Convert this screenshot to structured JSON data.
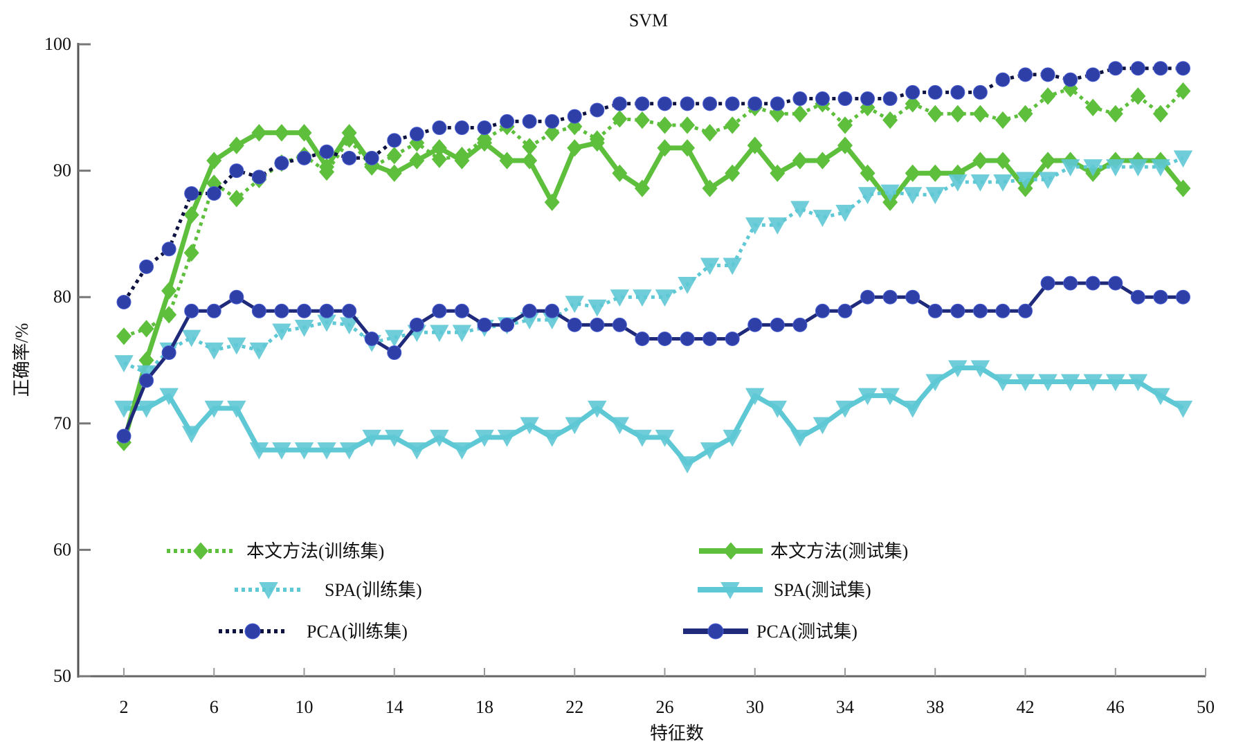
{
  "chart_data": {
    "type": "line",
    "title": "SVM",
    "xlabel": "特征数",
    "ylabel": "正确率/%",
    "xlim": [
      0,
      50
    ],
    "ylim": [
      50,
      100
    ],
    "xticks": [
      2,
      6,
      10,
      14,
      18,
      22,
      26,
      30,
      34,
      38,
      42,
      46,
      50
    ],
    "yticks": [
      50,
      60,
      70,
      80,
      90,
      100
    ],
    "grid": false,
    "legend_position": "lower-center",
    "x": [
      2,
      3,
      4,
      5,
      6,
      7,
      8,
      9,
      10,
      11,
      12,
      13,
      14,
      15,
      16,
      17,
      18,
      19,
      20,
      21,
      22,
      23,
      24,
      25,
      26,
      27,
      28,
      29,
      30,
      31,
      32,
      33,
      34,
      35,
      36,
      37,
      38,
      39,
      40,
      41,
      42,
      43,
      44,
      45,
      46,
      47,
      48,
      49
    ],
    "series": [
      {
        "name": "本文方法(训练集)",
        "color": "#5dbf3c",
        "style": "dotted",
        "marker": "diamond-circle",
        "values": [
          76.9,
          77.5,
          78.6,
          83.5,
          89.0,
          87.8,
          89.3,
          90.6,
          91.2,
          89.9,
          92.5,
          90.3,
          91.2,
          92.2,
          90.9,
          91.2,
          92.5,
          93.5,
          91.9,
          93.0,
          93.5,
          92.5,
          94.1,
          94.0,
          93.6,
          93.6,
          93.0,
          93.6,
          95.0,
          94.5,
          94.5,
          95.3,
          93.6,
          95.0,
          94.0,
          95.3,
          94.5,
          94.5,
          94.5,
          94.0,
          94.5,
          95.9,
          96.5,
          95.0,
          94.5,
          95.9,
          94.5,
          96.3
        ]
      },
      {
        "name": "本文方法(测试集)",
        "color": "#5dbf3c",
        "style": "solid",
        "marker": "diamond-circle",
        "values": [
          68.5,
          75.0,
          80.5,
          86.5,
          90.8,
          92.0,
          93.0,
          93.0,
          93.0,
          90.3,
          93.0,
          90.5,
          89.8,
          90.8,
          91.8,
          90.8,
          92.2,
          90.8,
          90.8,
          87.5,
          91.8,
          92.2,
          89.8,
          88.6,
          91.8,
          91.8,
          88.6,
          89.8,
          92.0,
          89.8,
          90.8,
          90.8,
          92.0,
          89.8,
          87.5,
          89.8,
          89.8,
          89.8,
          90.8,
          90.8,
          88.6,
          90.8,
          90.8,
          89.8,
          90.8,
          90.8,
          90.8,
          88.6
        ]
      },
      {
        "name": "SPA(训练集)",
        "color": "#5ec8d4",
        "style": "dotted",
        "marker": "triangle-down",
        "values": [
          74.8,
          74.0,
          75.8,
          76.8,
          75.8,
          76.2,
          75.8,
          77.3,
          77.6,
          78.0,
          77.8,
          76.4,
          76.8,
          77.2,
          77.2,
          77.2,
          77.6,
          77.8,
          78.2,
          78.2,
          79.5,
          79.2,
          80.0,
          80.0,
          80.0,
          81.0,
          82.5,
          82.5,
          85.7,
          85.7,
          87.0,
          86.3,
          86.7,
          88.1,
          88.3,
          88.1,
          88.1,
          89.1,
          89.1,
          89.1,
          89.3,
          89.3,
          90.3,
          90.3,
          90.3,
          90.3,
          90.3,
          91.0
        ]
      },
      {
        "name": "SPA(测试集)",
        "color": "#5ec8d4",
        "style": "solid",
        "marker": "triangle-down",
        "values": [
          71.2,
          71.2,
          72.2,
          69.2,
          71.2,
          71.2,
          67.9,
          67.9,
          67.9,
          67.9,
          67.9,
          68.9,
          68.9,
          67.9,
          68.9,
          67.9,
          68.9,
          68.9,
          69.9,
          68.9,
          69.9,
          71.2,
          69.9,
          68.9,
          68.9,
          66.8,
          67.9,
          68.9,
          72.2,
          71.2,
          68.9,
          69.9,
          71.2,
          72.2,
          72.2,
          71.2,
          73.3,
          74.4,
          74.4,
          73.3,
          73.3,
          73.3,
          73.3,
          73.3,
          73.3,
          73.3,
          72.2,
          71.2
        ]
      },
      {
        "name": "PCA(训练集)",
        "color": "#2f3fa8",
        "line_color": "#0d1240",
        "style": "dotted",
        "marker": "circle",
        "values": [
          79.6,
          82.4,
          83.8,
          88.2,
          88.2,
          90.0,
          89.5,
          90.6,
          91.0,
          91.5,
          91.0,
          91.0,
          92.4,
          92.9,
          93.4,
          93.4,
          93.4,
          93.9,
          93.9,
          93.9,
          94.3,
          94.8,
          95.3,
          95.3,
          95.3,
          95.3,
          95.3,
          95.3,
          95.3,
          95.3,
          95.7,
          95.7,
          95.7,
          95.7,
          95.7,
          96.2,
          96.2,
          96.2,
          96.2,
          97.2,
          97.6,
          97.6,
          97.2,
          97.6,
          98.1,
          98.1,
          98.1,
          98.1
        ]
      },
      {
        "name": "PCA(测试集)",
        "color": "#2f3fa8",
        "line_color": "#1f2a7a",
        "style": "solid",
        "marker": "circle",
        "values": [
          69.0,
          73.4,
          75.6,
          78.9,
          78.9,
          80.0,
          78.9,
          78.9,
          78.9,
          78.9,
          78.9,
          76.7,
          75.6,
          77.8,
          78.9,
          78.9,
          77.8,
          77.8,
          78.9,
          78.9,
          77.8,
          77.8,
          77.8,
          76.7,
          76.7,
          76.7,
          76.7,
          76.7,
          77.8,
          77.8,
          77.8,
          78.9,
          78.9,
          80.0,
          80.0,
          80.0,
          78.9,
          78.9,
          78.9,
          78.9,
          78.9,
          81.1,
          81.1,
          81.1,
          81.1,
          80.0,
          80.0,
          80.0
        ]
      }
    ],
    "legend": {
      "columns": 2,
      "entries_order": [
        0,
        1,
        2,
        3,
        4,
        5
      ]
    }
  }
}
